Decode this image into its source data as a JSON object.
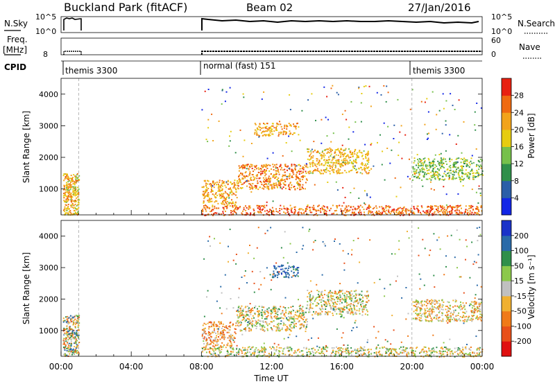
{
  "header": {
    "title": "Buckland Park (fitACF)",
    "beam": "Beam 02",
    "date": "27/Jan/2016"
  },
  "summary_panels": {
    "nsky_label": "N.Sky",
    "nsky_ticks": [
      "10^5",
      "10^0"
    ],
    "nsearch_label": "N.Search",
    "nsearch_ticks": [
      "10^5",
      "10^0"
    ],
    "freq_label": "Freq.",
    "freq_unit": "[MHz]",
    "freq_tick": "8",
    "nave_label": "Nave",
    "nave_ticks": [
      "60",
      "0"
    ],
    "cpid_label": "CPID",
    "modes": [
      {
        "label": "themis 3300",
        "start_hour": 0.0,
        "end_hour": 8.0
      },
      {
        "label": "normal (fast) 151",
        "start_hour": 8.0,
        "end_hour": 20.0
      },
      {
        "label": "themis 3300",
        "start_hour": 20.0,
        "end_hour": 24.0
      }
    ]
  },
  "chart_data": [
    {
      "type": "heatmap",
      "title": "",
      "xlabel": "",
      "ylabel": "Slant Range [km]",
      "xlim": [
        0,
        24
      ],
      "ylim": [
        180,
        4500
      ],
      "yticks": [
        1000,
        2000,
        3000,
        4000
      ],
      "colorbar": {
        "label": "Power [dB]",
        "ticks": [
          "4",
          "8",
          "12",
          "16",
          "20",
          "24",
          "28"
        ],
        "colors": [
          "#1226e6",
          "#2a5ea8",
          "#2f8f4a",
          "#76c04b",
          "#e6cc10",
          "#f2a31a",
          "#ef6a10",
          "#e82010"
        ]
      },
      "data_gaps_hours": [
        [
          1.0,
          8.0
        ]
      ],
      "features": [
        {
          "start_hour": 8.0,
          "end_hour": 24.0,
          "range_km": [
            180,
            500
          ],
          "value_db": 26
        },
        {
          "start_hour": 8.0,
          "end_hour": 10.0,
          "range_km": [
            500,
            1300
          ],
          "value_db": 22
        },
        {
          "start_hour": 10.0,
          "end_hour": 14.0,
          "range_km": [
            1000,
            1800
          ],
          "value_db": 24
        },
        {
          "start_hour": 11.0,
          "end_hour": 13.5,
          "range_km": [
            2700,
            3100
          ],
          "value_db": 22
        },
        {
          "start_hour": 14.0,
          "end_hour": 17.5,
          "range_km": [
            1500,
            2300
          ],
          "value_db": 20
        },
        {
          "start_hour": 20.0,
          "end_hour": 24.0,
          "range_km": [
            1300,
            2000
          ],
          "value_db": 14
        }
      ]
    },
    {
      "type": "heatmap",
      "title": "",
      "xlabel": "Time UT",
      "ylabel": "Slant Range [km]",
      "xlim": [
        0,
        24
      ],
      "ylim": [
        180,
        4500
      ],
      "yticks": [
        1000,
        2000,
        3000,
        4000
      ],
      "xtick_labels": [
        "00:00",
        "04:00",
        "08:00",
        "12:00",
        "16:00",
        "20:00",
        "00:00"
      ],
      "colorbar": {
        "label": "Velocity [m s⁻¹]",
        "ticks": [
          "200",
          "100",
          "50",
          "15",
          "-15",
          "-50",
          "-100",
          "-200"
        ],
        "colors": [
          "#1a32c8",
          "#2a6aa8",
          "#2f8f4a",
          "#8cc84b",
          "#c0c0c0",
          "#f0b030",
          "#f07a18",
          "#e8501a",
          "#e01010"
        ]
      },
      "data_gaps_hours": [
        [
          1.0,
          8.0
        ]
      ],
      "features": [
        {
          "start_hour": 8.0,
          "end_hour": 24.0,
          "range_km": [
            180,
            500
          ],
          "value_ms": 0
        },
        {
          "start_hour": 8.0,
          "end_hour": 10.0,
          "range_km": [
            500,
            1300
          ],
          "value_ms": -60
        },
        {
          "start_hour": 10.0,
          "end_hour": 14.0,
          "range_km": [
            1000,
            1800
          ],
          "value_ms": 0
        },
        {
          "start_hour": 12.0,
          "end_hour": 13.5,
          "range_km": [
            2700,
            3100
          ],
          "value_ms": 150
        },
        {
          "start_hour": 14.0,
          "end_hour": 17.5,
          "range_km": [
            1500,
            2300
          ],
          "value_ms": 0
        },
        {
          "start_hour": 20.0,
          "end_hour": 24.0,
          "range_km": [
            1300,
            2000
          ],
          "value_ms": -20
        }
      ]
    }
  ]
}
